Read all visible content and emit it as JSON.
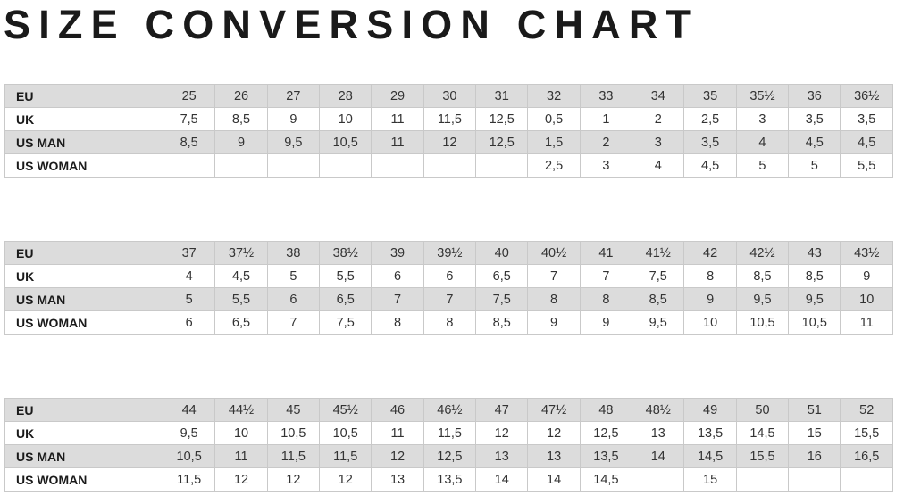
{
  "title": "SIZE CONVERSION CHART",
  "colors": {
    "row_shade": "#dcdcdc",
    "border": "#c9c9c9"
  },
  "tables": [
    {
      "rows": [
        {
          "label": "EU",
          "values": [
            "25",
            "26",
            "27",
            "28",
            "29",
            "30",
            "31",
            "32",
            "33",
            "34",
            "35",
            "35½",
            "36",
            "36½"
          ]
        },
        {
          "label": "UK",
          "values": [
            "7,5",
            "8,5",
            "9",
            "10",
            "11",
            "11,5",
            "12,5",
            "0,5",
            "1",
            "2",
            "2,5",
            "3",
            "3,5",
            "3,5"
          ]
        },
        {
          "label": "US MAN",
          "values": [
            "8,5",
            "9",
            "9,5",
            "10,5",
            "11",
            "12",
            "12,5",
            "1,5",
            "2",
            "3",
            "3,5",
            "4",
            "4,5",
            "4,5"
          ]
        },
        {
          "label": "US WOMAN",
          "values": [
            "",
            "",
            "",
            "",
            "",
            "",
            "",
            "2,5",
            "3",
            "4",
            "4,5",
            "5",
            "5",
            "5,5"
          ]
        }
      ]
    },
    {
      "rows": [
        {
          "label": "EU",
          "values": [
            "37",
            "37½",
            "38",
            "38½",
            "39",
            "39½",
            "40",
            "40½",
            "41",
            "41½",
            "42",
            "42½",
            "43",
            "43½"
          ]
        },
        {
          "label": "UK",
          "values": [
            "4",
            "4,5",
            "5",
            "5,5",
            "6",
            "6",
            "6,5",
            "7",
            "7",
            "7,5",
            "8",
            "8,5",
            "8,5",
            "9"
          ]
        },
        {
          "label": "US MAN",
          "values": [
            "5",
            "5,5",
            "6",
            "6,5",
            "7",
            "7",
            "7,5",
            "8",
            "8",
            "8,5",
            "9",
            "9,5",
            "9,5",
            "10"
          ]
        },
        {
          "label": "US WOMAN",
          "values": [
            "6",
            "6,5",
            "7",
            "7,5",
            "8",
            "8",
            "8,5",
            "9",
            "9",
            "9,5",
            "10",
            "10,5",
            "10,5",
            "11"
          ]
        }
      ]
    },
    {
      "rows": [
        {
          "label": "EU",
          "values": [
            "44",
            "44½",
            "45",
            "45½",
            "46",
            "46½",
            "47",
            "47½",
            "48",
            "48½",
            "49",
            "50",
            "51",
            "52"
          ]
        },
        {
          "label": "UK",
          "values": [
            "9,5",
            "10",
            "10,5",
            "10,5",
            "11",
            "11,5",
            "12",
            "12",
            "12,5",
            "13",
            "13,5",
            "14,5",
            "15",
            "15,5"
          ]
        },
        {
          "label": "US MAN",
          "values": [
            "10,5",
            "11",
            "11,5",
            "11,5",
            "12",
            "12,5",
            "13",
            "13",
            "13,5",
            "14",
            "14,5",
            "15,5",
            "16",
            "16,5"
          ]
        },
        {
          "label": "US WOMAN",
          "values": [
            "11,5",
            "12",
            "12",
            "12",
            "13",
            "13,5",
            "14",
            "14",
            "14,5",
            "",
            "15",
            "",
            "",
            ""
          ]
        }
      ]
    }
  ]
}
